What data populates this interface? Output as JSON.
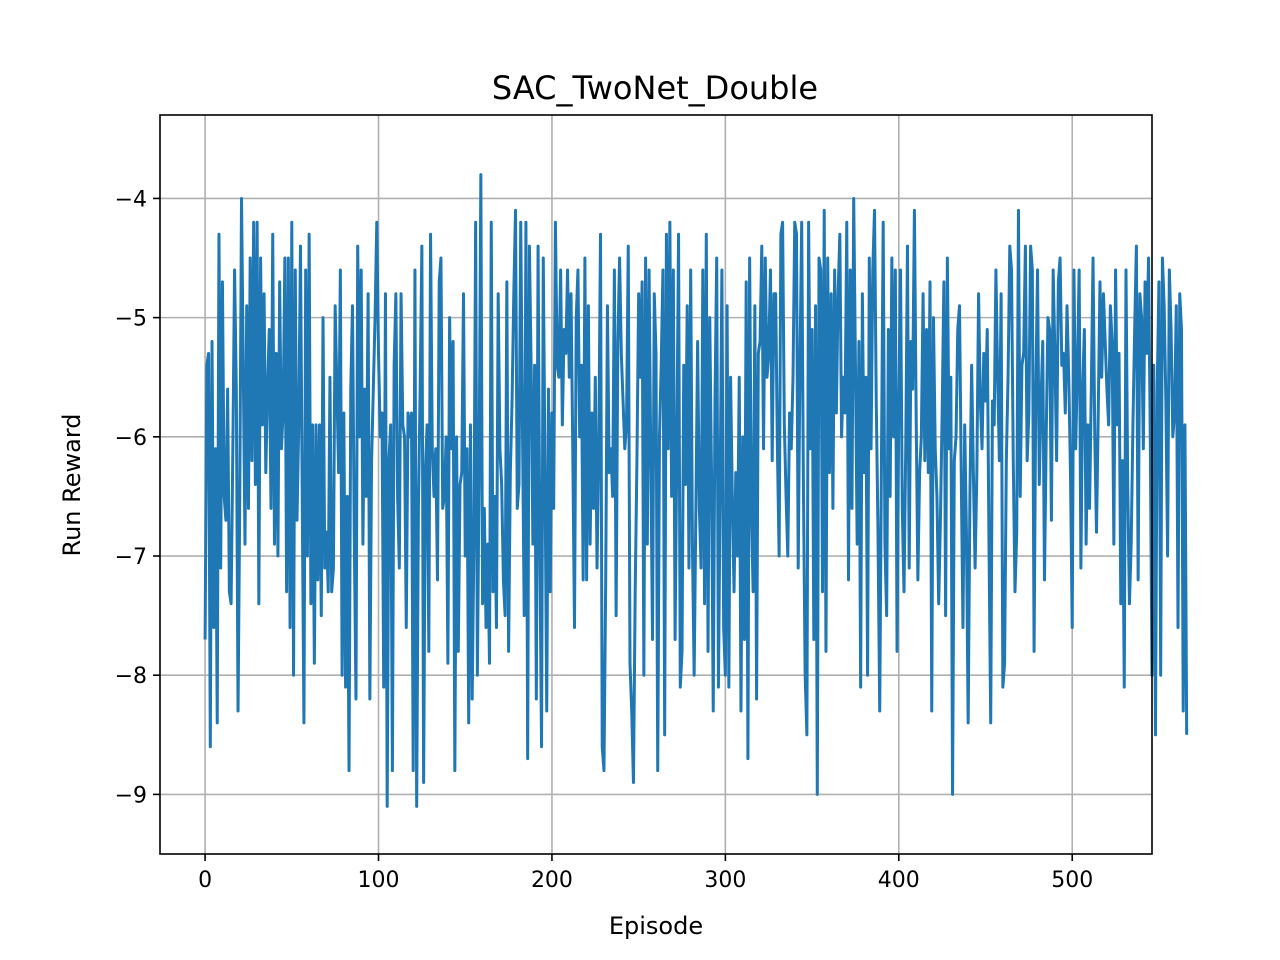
{
  "chart_data": {
    "type": "line",
    "title": "SAC_TwoNet_Double",
    "xlabel": "Episode",
    "ylabel": "Run Reward",
    "xlim": [
      -26,
      546
    ],
    "ylim": [
      -9.5,
      -3.3
    ],
    "x_ticks": [
      0,
      100,
      200,
      300,
      400,
      500
    ],
    "x_tick_labels": [
      "0",
      "100",
      "200",
      "300",
      "400",
      "500"
    ],
    "y_ticks": [
      -9,
      -8,
      -7,
      -6,
      -5,
      -4
    ],
    "y_tick_labels": [
      "−9",
      "−8",
      "−7",
      "−6",
      "−5",
      "−4"
    ],
    "grid": true,
    "legend": "none",
    "color": "#1f77b4",
    "series": [
      {
        "x_start": 0,
        "x_step": 1,
        "values": [
          -7.7,
          -5.4,
          -5.3,
          -8.6,
          -5.2,
          -7.6,
          -6.1,
          -8.4,
          -4.3,
          -7.1,
          -4.7,
          -6.5,
          -6.7,
          -5.6,
          -7.3,
          -7.4,
          -6.1,
          -4.6,
          -5.6,
          -8.3,
          -6.5,
          -4.0,
          -5.4,
          -6.9,
          -4.9,
          -6.6,
          -4.5,
          -6.2,
          -4.2,
          -6.4,
          -4.2,
          -7.4,
          -4.5,
          -5.9,
          -4.8,
          -6.3,
          -5.6,
          -5.1,
          -6.6,
          -4.3,
          -6.9,
          -5.3,
          -7.0,
          -4.7,
          -6.1,
          -5.8,
          -4.5,
          -7.3,
          -4.5,
          -7.6,
          -4.2,
          -8.0,
          -4.6,
          -6.7,
          -5.9,
          -4.4,
          -6.5,
          -8.4,
          -4.6,
          -7.0,
          -4.3,
          -7.4,
          -5.9,
          -7.9,
          -5.9,
          -7.2,
          -5.9,
          -7.5,
          -5.0,
          -7.1,
          -6.8,
          -7.3,
          -5.5,
          -7.3,
          -7.1,
          -4.9,
          -5.6,
          -6.3,
          -4.6,
          -8.0,
          -5.8,
          -8.1,
          -6.5,
          -8.8,
          -5.6,
          -4.9,
          -6.8,
          -8.2,
          -4.4,
          -6.0,
          -4.6,
          -6.9,
          -5.6,
          -6.5,
          -4.8,
          -8.2,
          -6.2,
          -5.6,
          -5.0,
          -4.2,
          -5.3,
          -6.0,
          -5.8,
          -8.1,
          -4.8,
          -9.1,
          -6.2,
          -5.9,
          -8.8,
          -5.4,
          -4.8,
          -6.5,
          -7.1,
          -4.8,
          -5.9,
          -6.0,
          -7.6,
          -5.8,
          -6.0,
          -5.8,
          -8.8,
          -4.6,
          -9.1,
          -6.6,
          -5.6,
          -4.4,
          -8.9,
          -6.3,
          -5.9,
          -7.8,
          -4.3,
          -6.1,
          -6.5,
          -6.1,
          -7.2,
          -4.7,
          -4.5,
          -6.6,
          -6.5,
          -6.0,
          -7.9,
          -5.0,
          -6.1,
          -5.2,
          -8.8,
          -6.0,
          -7.8,
          -6.4,
          -6.3,
          -4.8,
          -7.0,
          -6.1,
          -8.4,
          -5.9,
          -8.2,
          -6.9,
          -4.2,
          -8.0,
          -6.3,
          -3.8,
          -7.4,
          -6.6,
          -7.6,
          -6.9,
          -7.9,
          -4.2,
          -7.3,
          -6.5,
          -7.6,
          -4.8,
          -6.1,
          -6.4,
          -7.2,
          -7.5,
          -4.7,
          -7.8,
          -6.3,
          -5.7,
          -4.8,
          -4.1,
          -6.6,
          -6.4,
          -4.2,
          -5.9,
          -7.5,
          -4.2,
          -8.7,
          -4.4,
          -5.4,
          -6.9,
          -5.4,
          -8.2,
          -4.4,
          -6.9,
          -8.6,
          -4.5,
          -6.3,
          -8.3,
          -5.6,
          -7.3,
          -5.8,
          -6.6,
          -4.2,
          -5.4,
          -5.5,
          -4.6,
          -5.9,
          -5.1,
          -5.3,
          -4.6,
          -5.5,
          -4.8,
          -6.1,
          -7.6,
          -5.0,
          -4.6,
          -6.0,
          -5.4,
          -7.2,
          -4.5,
          -7.2,
          -4.9,
          -6.9,
          -5.8,
          -6.6,
          -5.5,
          -7.1,
          -6.1,
          -4.3,
          -8.6,
          -8.8,
          -7.2,
          -4.9,
          -6.3,
          -6.1,
          -6.5,
          -4.6,
          -7.5,
          -5.2,
          -4.5,
          -5.3,
          -5.7,
          -6.1,
          -5.9,
          -4.4,
          -7.9,
          -8.3,
          -8.9,
          -7.3,
          -6.2,
          -4.8,
          -5.5,
          -4.7,
          -8.0,
          -4.5,
          -6.9,
          -4.6,
          -6.2,
          -7.7,
          -4.8,
          -5.3,
          -8.8,
          -6.0,
          -5.4,
          -4.6,
          -8.5,
          -4.3,
          -6.1,
          -4.2,
          -6.5,
          -4.6,
          -7.7,
          -6.1,
          -4.3,
          -8.1,
          -7.8,
          -5.4,
          -6.4,
          -4.9,
          -7.1,
          -4.6,
          -6.9,
          -8.0,
          -6.6,
          -5.2,
          -6.6,
          -7.1,
          -4.6,
          -7.4,
          -4.3,
          -7.8,
          -5.0,
          -6.3,
          -8.3,
          -5.7,
          -4.5,
          -8.1,
          -6.4,
          -4.6,
          -7.6,
          -8.0,
          -4.9,
          -8.1,
          -5.5,
          -6.5,
          -7.3,
          -6.3,
          -7.0,
          -5.5,
          -8.3,
          -6.0,
          -7.7,
          -4.7,
          -8.7,
          -4.5,
          -6.6,
          -7.3,
          -4.9,
          -8.2,
          -5.3,
          -5.2,
          -4.4,
          -6.1,
          -4.5,
          -5.5,
          -5.3,
          -4.6,
          -6.2,
          -4.8,
          -4.8,
          -6.1,
          -7.0,
          -4.3,
          -4.2,
          -5.9,
          -6.5,
          -7.0,
          -5.8,
          -6.1,
          -5.5,
          -4.2,
          -4.3,
          -7.1,
          -5.4,
          -4.2,
          -6.4,
          -8.0,
          -8.5,
          -4.2,
          -6.1,
          -5.1,
          -7.7,
          -4.9,
          -9.0,
          -4.5,
          -4.6,
          -7.3,
          -4.1,
          -7.8,
          -4.5,
          -6.3,
          -4.8,
          -6.6,
          -4.6,
          -5.8,
          -4.8,
          -4.3,
          -6.0,
          -5.5,
          -5.8,
          -4.2,
          -7.2,
          -4.6,
          -6.6,
          -4.0,
          -5.4,
          -6.9,
          -5.2,
          -8.1,
          -4.8,
          -6.3,
          -5.5,
          -8.0,
          -4.5,
          -6.1,
          -4.6,
          -4.1,
          -5.7,
          -6.8,
          -8.3,
          -6.2,
          -4.2,
          -6.9,
          -7.5,
          -5.1,
          -6.5,
          -4.5,
          -6.0,
          -4.6,
          -7.8,
          -5.7,
          -4.6,
          -6.6,
          -7.3,
          -6.1,
          -4.4,
          -7.1,
          -5.2,
          -5.6,
          -4.1,
          -5.8,
          -7.2,
          -6.3,
          -6.0,
          -4.8,
          -6.2,
          -5.1,
          -6.3,
          -4.7,
          -8.3,
          -5.0,
          -6.1,
          -6.5,
          -7.4,
          -6.7,
          -5.8,
          -4.7,
          -7.5,
          -4.5,
          -6.1,
          -5.5,
          -9.0,
          -6.2,
          -6.0,
          -5.1,
          -4.9,
          -6.3,
          -7.6,
          -5.9,
          -6.8,
          -8.4,
          -6.5,
          -5.4,
          -6.3,
          -7.1,
          -6.3,
          -4.8,
          -5.7,
          -6.1,
          -5.3,
          -5.7,
          -5.1,
          -6.9,
          -8.4,
          -5.7,
          -5.9,
          -4.6,
          -5.5,
          -6.2,
          -4.8,
          -8.1,
          -7.9,
          -6.2,
          -5.5,
          -4.4,
          -4.6,
          -6.2,
          -7.3,
          -6.8,
          -4.1,
          -6.5,
          -5.4,
          -5.3,
          -4.4,
          -6.2,
          -5.8,
          -4.4,
          -4.6,
          -7.8,
          -5.6,
          -4.6,
          -6.4,
          -5.7,
          -5.2,
          -7.2,
          -6.0,
          -5.0,
          -5.1,
          -6.7,
          -4.6,
          -5.3,
          -6.2,
          -4.7,
          -4.5,
          -5.4,
          -5.3,
          -5.8,
          -4.9,
          -5.5,
          -6.3,
          -7.6,
          -4.6,
          -6.1,
          -5.4,
          -4.6,
          -7.1,
          -5.6,
          -5.1,
          -6.9,
          -5.9,
          -6.6,
          -5.6,
          -4.5,
          -6.0,
          -6.8,
          -5.8,
          -4.7,
          -5.5,
          -4.8,
          -5.2,
          -5.6,
          -5.9,
          -4.9,
          -5.2,
          -6.9,
          -4.6,
          -5.9,
          -5.3,
          -7.4,
          -6.2,
          -8.1,
          -4.6,
          -6.4,
          -7.4,
          -6.9,
          -5.9,
          -5.1,
          -4.4,
          -7.2,
          -4.8,
          -5.0,
          -6.1,
          -4.7,
          -5.3,
          -4.5,
          -6.0,
          -8.0,
          -5.4,
          -8.5,
          -5.6,
          -4.7,
          -8.0,
          -4.5,
          -4.9,
          -5.7,
          -7.0,
          -4.6,
          -5.1,
          -6.0,
          -5.8,
          -4.9,
          -7.6,
          -4.8,
          -5.1,
          -8.3,
          -5.9,
          -8.5
        ],
        "_note_len": 0
      }
    ]
  }
}
